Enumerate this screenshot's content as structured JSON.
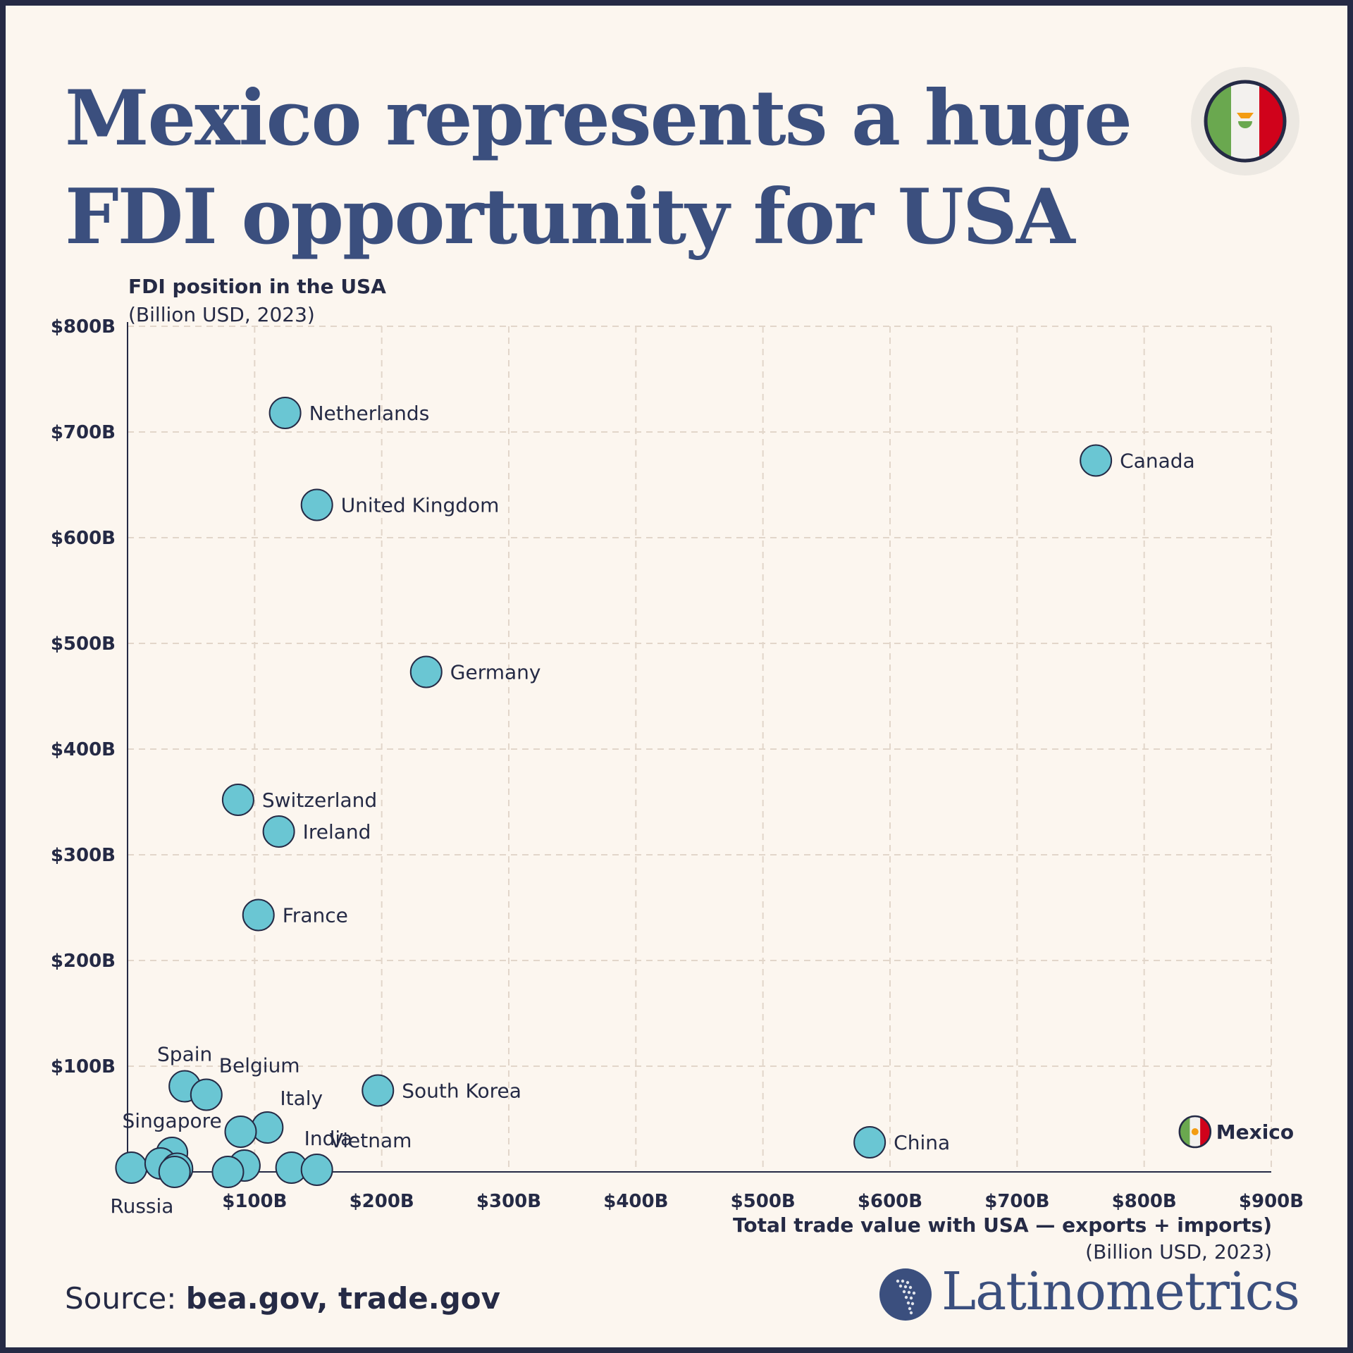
{
  "title": {
    "line1": "Mexico represents a huge",
    "line2": "FDI opportunity for USA"
  },
  "icons": {
    "badge": "mexico-flag-icon",
    "brand": "latin-america-map-icon"
  },
  "colors": {
    "background": "#fcf6ef",
    "title": "#3b4f7e",
    "point_fill": "#6ac6d3",
    "point_stroke": "#252a45",
    "grid": "#e2d6ca",
    "flag_green": "#6aa84f",
    "flag_white": "#f3f1ee",
    "flag_red": "#d0021b",
    "flag_emblem": "#f39c12"
  },
  "source": {
    "label": "Source: ",
    "value": "bea.gov, trade.gov"
  },
  "brand": {
    "name": "Latinometrics"
  },
  "chart_data": {
    "type": "scatter",
    "ylabel": "FDI position in the USA",
    "ylabel_sub": "(Billion USD, 2023)",
    "xlabel": "Total trade value with USA — exports + imports)",
    "xlabel_sub": "(Billion USD, 2023)",
    "xlim": [
      0,
      900
    ],
    "ylim": [
      0,
      800
    ],
    "x_ticks": [
      100,
      200,
      300,
      400,
      500,
      600,
      700,
      800,
      900
    ],
    "x_tick_labels": [
      "$100B",
      "$200B",
      "$300B",
      "$400B",
      "$500B",
      "$600B",
      "$700B",
      "$800B",
      "$900B"
    ],
    "y_ticks": [
      100,
      200,
      300,
      400,
      500,
      600,
      700,
      800
    ],
    "y_tick_labels": [
      "$100B",
      "$200B",
      "$300B",
      "$400B",
      "$500B",
      "$600B",
      "$700B",
      "$800B"
    ],
    "grid": true,
    "points": [
      {
        "label": "Netherlands",
        "x": 124,
        "y": 718,
        "label_pos": "right"
      },
      {
        "label": "Canada",
        "x": 762,
        "y": 673,
        "label_pos": "right"
      },
      {
        "label": "United Kingdom",
        "x": 149,
        "y": 631,
        "label_pos": "right"
      },
      {
        "label": "Germany",
        "x": 235,
        "y": 473,
        "label_pos": "right"
      },
      {
        "label": "Switzerland",
        "x": 87,
        "y": 352,
        "label_pos": "right"
      },
      {
        "label": "Ireland",
        "x": 119,
        "y": 322,
        "label_pos": "right"
      },
      {
        "label": "France",
        "x": 103,
        "y": 243,
        "label_pos": "right"
      },
      {
        "label": "Spain",
        "x": 45,
        "y": 81,
        "label_pos": "above"
      },
      {
        "label": "Belgium",
        "x": 62,
        "y": 73,
        "label_pos": "above-right"
      },
      {
        "label": "South Korea",
        "x": 197,
        "y": 77,
        "label_pos": "right"
      },
      {
        "label": "Italy",
        "x": 110,
        "y": 42,
        "label_pos": "above-right"
      },
      {
        "label": "",
        "x": 89,
        "y": 38,
        "label_pos": "none"
      },
      {
        "label": "Singapore",
        "x": 35,
        "y": 18,
        "label_pos": "above"
      },
      {
        "label": "India",
        "x": 129,
        "y": 4,
        "label_pos": "above-right"
      },
      {
        "label": "Vietnam",
        "x": 149,
        "y": 2,
        "label_pos": "above-right"
      },
      {
        "label": "China",
        "x": 584,
        "y": 28,
        "label_pos": "right"
      },
      {
        "label": "Russia",
        "x": 3,
        "y": 4,
        "label_pos": "below"
      },
      {
        "label": "",
        "x": 26,
        "y": 8,
        "label_pos": "none"
      },
      {
        "label": "",
        "x": 39,
        "y": 3,
        "label_pos": "none"
      },
      {
        "label": "",
        "x": 37,
        "y": 0,
        "label_pos": "none"
      },
      {
        "label": "",
        "x": 92,
        "y": 6,
        "label_pos": "none"
      },
      {
        "label": "",
        "x": 79,
        "y": 0,
        "label_pos": "none"
      }
    ],
    "highlight": {
      "label": "Mexico",
      "x": 840,
      "y": 38,
      "icon": "mexico-flag-icon"
    }
  }
}
